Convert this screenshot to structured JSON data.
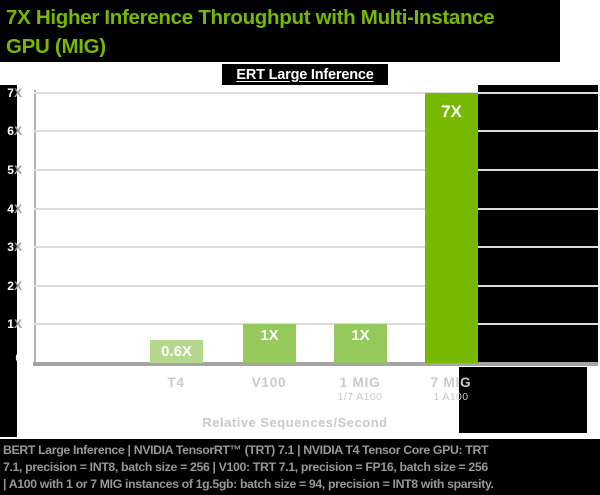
{
  "header": {
    "title": "7X Higher Inference Throughput with Multi-Instance\nGPU (MIG)"
  },
  "chart_data": {
    "type": "bar",
    "title": "ERT Large Inference",
    "categories": [
      "T4",
      "V100",
      "1 MIG",
      "7 MIG"
    ],
    "category_sublabels": [
      "",
      "",
      "1/7 A100",
      "1 A100"
    ],
    "values": [
      0.6,
      1,
      1,
      7
    ],
    "bar_labels": [
      "0.6X",
      "1X",
      "1X",
      "7X"
    ],
    "bar_colors": [
      "#b6d88d",
      "#95c95c",
      "#95c95c",
      "#76b900"
    ],
    "yticks": [
      "0",
      "1X",
      "2X",
      "3X",
      "4X",
      "5X",
      "6X",
      "7X"
    ],
    "ylim": [
      0,
      7
    ],
    "xlabel": "Relative Sequences/Second",
    "ylabel": "",
    "grid": true,
    "legend": false
  },
  "caption": "BERT Large Inference | NVIDIA TensorRT™ (TRT) 7.1 | NVIDIA T4 Tensor Core GPU: TRT\n7.1, precision = INT8, batch size = 256 | V100: TRT 7.1, precision = FP16, batch size = 256\n| A100 with 1 or 7 MIG instances of 1g.5gb: batch size = 94, precision = INT8 with sparsity.",
  "colors": {
    "accent_green": "#76b900",
    "bar_light_green": "#b6d88d",
    "bar_mid_green": "#95c95c",
    "panel_black": "#000000",
    "grid_gray": "#dcdcdc",
    "axis_gray": "#a4a4a4",
    "muted_label_gray": "#c9c9c9",
    "caption_gray": "#979797",
    "background": "#ffffff"
  }
}
